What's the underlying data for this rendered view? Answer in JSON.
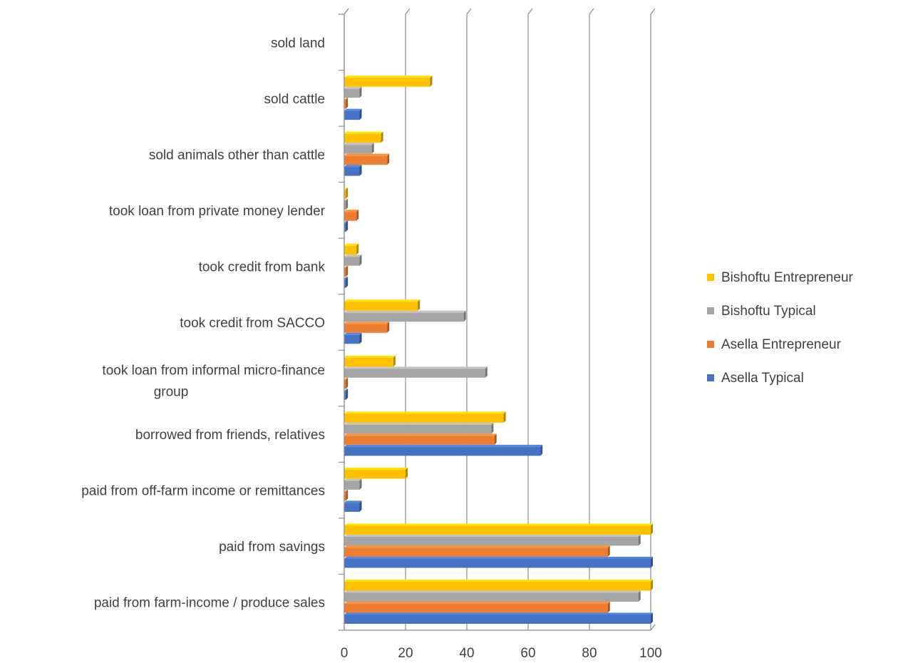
{
  "chart_data": {
    "type": "bar",
    "orientation": "horizontal",
    "categories": [
      "paid from farm-income / produce sales",
      "paid from savings",
      "paid from off-farm income or remittances",
      "borrowed from friends, relatives",
      "took loan from informal micro-finance group",
      "took credit from SACCO",
      "took credit from bank",
      "took loan from private money lender",
      "sold animals other than cattle",
      "sold cattle",
      "sold land"
    ],
    "series": [
      {
        "name": "Asella Typical",
        "color": "#4472C4",
        "values": [
          100,
          100,
          5,
          64,
          0.5,
          5,
          0.5,
          0.5,
          5,
          5,
          0
        ]
      },
      {
        "name": "Asella Entrepreneur",
        "color": "#ED7D31",
        "values": [
          86,
          86,
          0.5,
          49,
          0.5,
          14,
          0.5,
          4,
          14,
          0.5,
          0
        ]
      },
      {
        "name": "Bishoftu Typical",
        "color": "#A5A5A5",
        "values": [
          96,
          96,
          5,
          48,
          46,
          39,
          5,
          0.5,
          9,
          5,
          0
        ]
      },
      {
        "name": "Bishoftu Entrepreneur",
        "color": "#FFC000",
        "values": [
          100,
          100,
          20,
          52,
          16,
          24,
          4,
          0.5,
          12,
          28,
          0
        ]
      }
    ],
    "xlim": [
      0,
      100
    ],
    "xticks": [
      "0",
      "20",
      "40",
      "60",
      "80",
      "100"
    ],
    "grid": true,
    "legend_position": "right",
    "title": "",
    "xlabel": "",
    "ylabel": ""
  }
}
